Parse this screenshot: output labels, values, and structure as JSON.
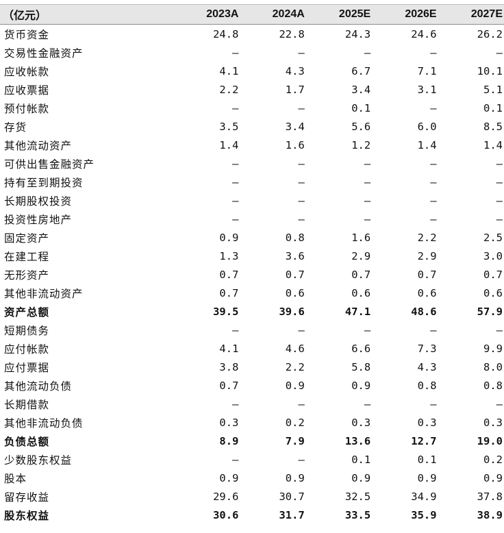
{
  "header": {
    "unit_label": "（亿元）",
    "years": [
      "2023A",
      "2024A",
      "2025E",
      "2026E",
      "2027E"
    ]
  },
  "rows": [
    {
      "label": "货币资金",
      "values": [
        "24.8",
        "22.8",
        "24.3",
        "24.6",
        "26.2"
      ],
      "total": false
    },
    {
      "label": "交易性金融资产",
      "values": [
        "–",
        "–",
        "–",
        "–",
        "–"
      ],
      "total": false
    },
    {
      "label": "应收帐款",
      "values": [
        "4.1",
        "4.3",
        "6.7",
        "7.1",
        "10.1"
      ],
      "total": false
    },
    {
      "label": "应收票据",
      "values": [
        "2.2",
        "1.7",
        "3.4",
        "3.1",
        "5.1"
      ],
      "total": false
    },
    {
      "label": "预付帐款",
      "values": [
        "–",
        "–",
        "0.1",
        "–",
        "0.1"
      ],
      "total": false
    },
    {
      "label": "存货",
      "values": [
        "3.5",
        "3.4",
        "5.6",
        "6.0",
        "8.5"
      ],
      "total": false
    },
    {
      "label": "其他流动资产",
      "values": [
        "1.4",
        "1.6",
        "1.2",
        "1.4",
        "1.4"
      ],
      "total": false
    },
    {
      "label": "可供出售金融资产",
      "values": [
        "–",
        "–",
        "–",
        "–",
        "–"
      ],
      "total": false
    },
    {
      "label": "持有至到期投资",
      "values": [
        "–",
        "–",
        "–",
        "–",
        "–"
      ],
      "total": false
    },
    {
      "label": "长期股权投资",
      "values": [
        "–",
        "–",
        "–",
        "–",
        "–"
      ],
      "total": false
    },
    {
      "label": "投资性房地产",
      "values": [
        "–",
        "–",
        "–",
        "–",
        "–"
      ],
      "total": false
    },
    {
      "label": "固定资产",
      "values": [
        "0.9",
        "0.8",
        "1.6",
        "2.2",
        "2.5"
      ],
      "total": false
    },
    {
      "label": "在建工程",
      "values": [
        "1.3",
        "3.6",
        "2.9",
        "2.9",
        "3.0"
      ],
      "total": false
    },
    {
      "label": "无形资产",
      "values": [
        "0.7",
        "0.7",
        "0.7",
        "0.7",
        "0.7"
      ],
      "total": false
    },
    {
      "label": "其他非流动资产",
      "values": [
        "0.7",
        "0.6",
        "0.6",
        "0.6",
        "0.6"
      ],
      "total": false
    },
    {
      "label": "资产总额",
      "values": [
        "39.5",
        "39.6",
        "47.1",
        "48.6",
        "57.9"
      ],
      "total": true
    },
    {
      "label": "短期债务",
      "values": [
        "–",
        "–",
        "–",
        "–",
        "–"
      ],
      "total": false
    },
    {
      "label": "应付帐款",
      "values": [
        "4.1",
        "4.6",
        "6.6",
        "7.3",
        "9.9"
      ],
      "total": false
    },
    {
      "label": "应付票据",
      "values": [
        "3.8",
        "2.2",
        "5.8",
        "4.3",
        "8.0"
      ],
      "total": false
    },
    {
      "label": "其他流动负债",
      "values": [
        "0.7",
        "0.9",
        "0.9",
        "0.8",
        "0.8"
      ],
      "total": false
    },
    {
      "label": "长期借款",
      "values": [
        "–",
        "–",
        "–",
        "–",
        "–"
      ],
      "total": false
    },
    {
      "label": "其他非流动负债",
      "values": [
        "0.3",
        "0.2",
        "0.3",
        "0.3",
        "0.3"
      ],
      "total": false
    },
    {
      "label": "负债总额",
      "values": [
        "8.9",
        "7.9",
        "13.6",
        "12.7",
        "19.0"
      ],
      "total": true
    },
    {
      "label": "少数股东权益",
      "values": [
        "–",
        "–",
        "0.1",
        "0.1",
        "0.2"
      ],
      "total": false
    },
    {
      "label": "股本",
      "values": [
        "0.9",
        "0.9",
        "0.9",
        "0.9",
        "0.9"
      ],
      "total": false
    },
    {
      "label": "留存收益",
      "values": [
        "29.6",
        "30.7",
        "32.5",
        "34.9",
        "37.8"
      ],
      "total": false
    },
    {
      "label": "股东权益",
      "values": [
        "30.6",
        "31.7",
        "33.5",
        "35.9",
        "38.9"
      ],
      "total": true
    }
  ]
}
